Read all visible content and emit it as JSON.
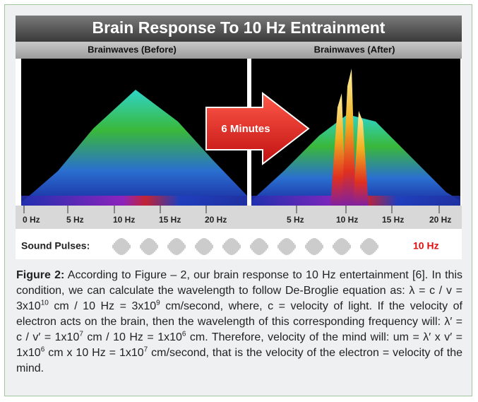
{
  "figure": {
    "title": "Brain Response To 10 Hz Entrainment",
    "left_label": "Brainwaves (Before)",
    "right_label": "Brainwaves (After)",
    "arrow_label": "6 Minutes",
    "left_ticks": [
      "0 Hz",
      "5 Hz",
      "10 Hz",
      "15 Hz",
      "20 Hz"
    ],
    "right_ticks": [
      "5 Hz",
      "10 Hz",
      "15 Hz",
      "20 Hz"
    ],
    "pulses_label": "Sound Pulses:",
    "pulses_frequency": "10 Hz"
  },
  "caption": {
    "label": "Figure 2:",
    "segments": [
      " According to Figure – 2, our brain response to 10 Hz entertainment [6]. In this condition, we can calculate the wavelength to follow De-Broglie equation as:  λ = c / v = 3x10",
      {
        "sup": "10"
      },
      " cm / 10 Hz = 3x10",
      {
        "sup": "9"
      },
      " cm/second, where, c = velocity of light. If the velocity of electron acts on the brain, then the wavelength of this corresponding frequency will: λ′ = c / v′ = 1x10",
      {
        "sup": "7"
      },
      " cm / 10 Hz = 1x10",
      {
        "sup": "6"
      },
      " cm. Therefore, velocity of the mind will:  um = λ′ x v′ = 1x10",
      {
        "sup": "6"
      },
      " cm x 10 Hz = 1x10",
      {
        "sup": "7"
      },
      " cm/second, that is the velocity of the electron = velocity of the mind."
    ]
  }
}
